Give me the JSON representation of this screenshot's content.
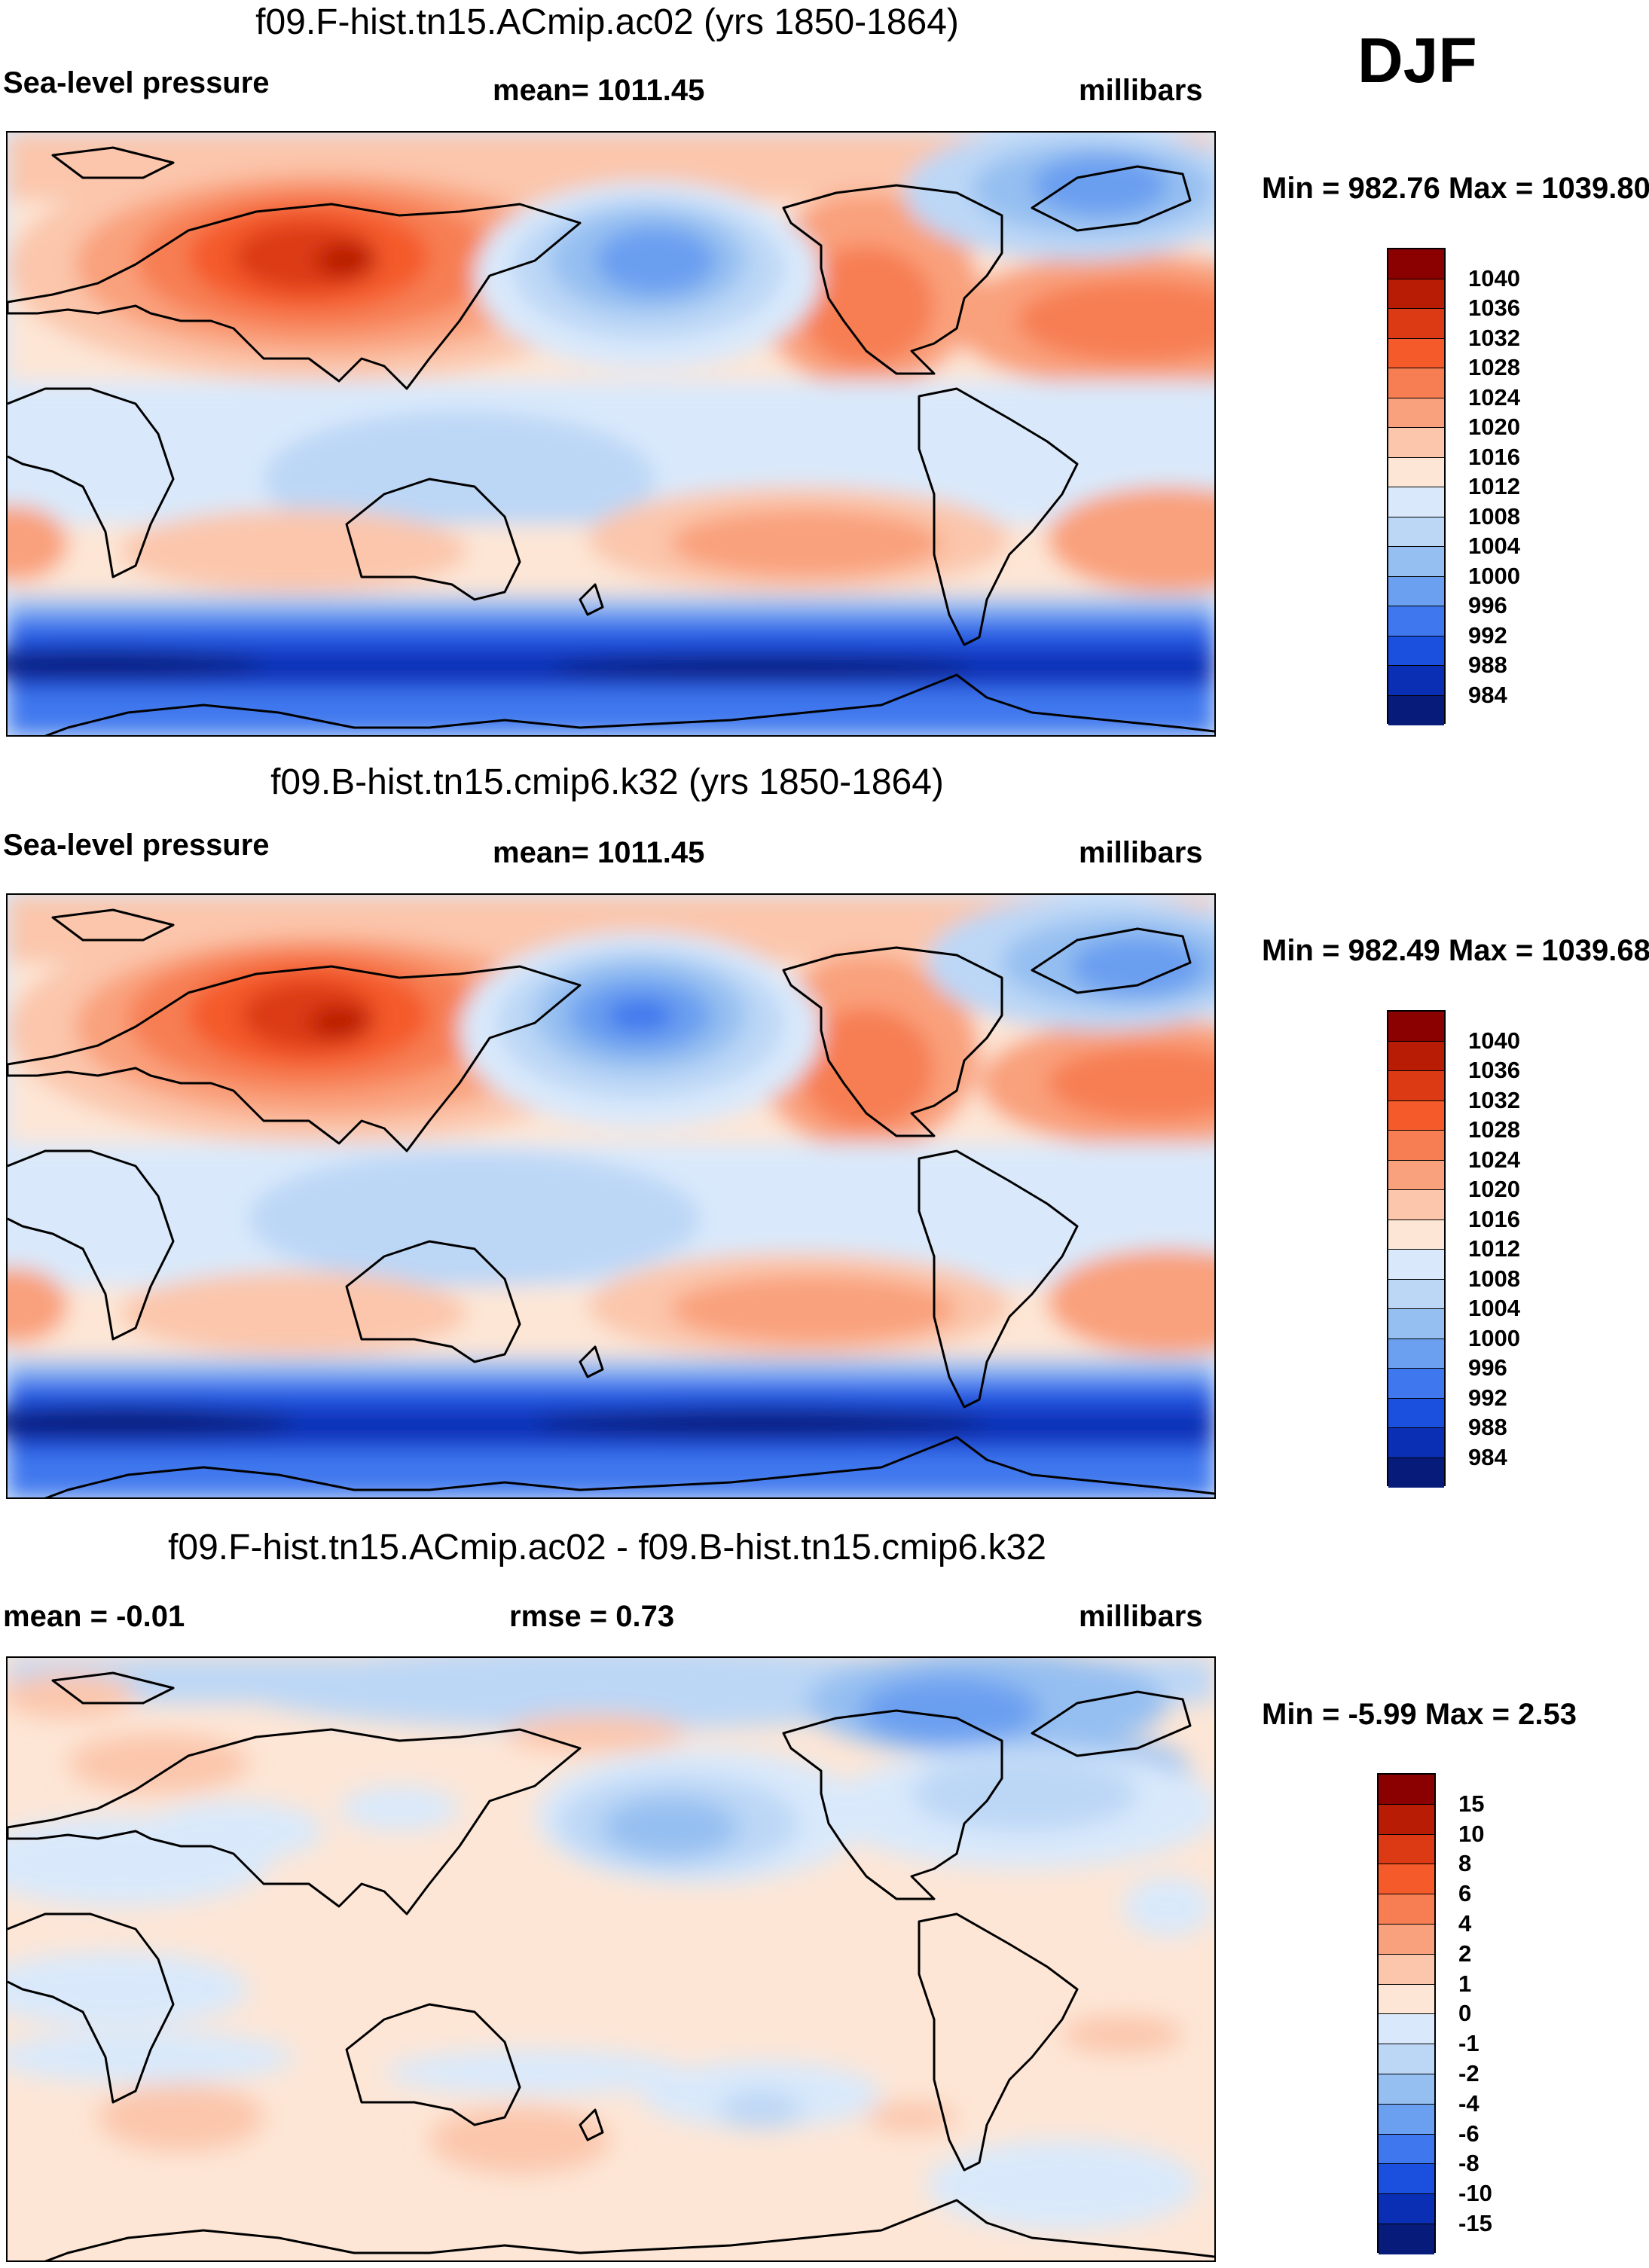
{
  "season": "DJF",
  "units_label": "millibars",
  "panels": [
    {
      "id": "panel-1",
      "title": "f09.F-hist.tn15.ACmip.ac02 (yrs 1850-1864)",
      "left_label": "Sea-level pressure",
      "center_label": "mean= 1011.45",
      "right_label": "millibars",
      "minmax": "Min = 982.76 Max = 1039.80"
    },
    {
      "id": "panel-2",
      "title": "f09.B-hist.tn15.cmip6.k32 (yrs 1850-1864)",
      "left_label": "Sea-level pressure",
      "center_label": "mean= 1011.45",
      "right_label": "millibars",
      "minmax": "Min = 982.49 Max = 1039.68"
    },
    {
      "id": "panel-3",
      "title": "f09.F-hist.tn15.ACmip.ac02 - f09.B-hist.tn15.cmip6.k32",
      "left_label": "mean =  -0.01",
      "center_label": "rmse =   0.73",
      "right_label": "millibars",
      "minmax": "Min =  -5.99 Max =   2.53"
    }
  ],
  "colorbars": {
    "pressure": {
      "labels": [
        "1040",
        "1036",
        "1032",
        "1028",
        "1024",
        "1020",
        "1016",
        "1012",
        "1008",
        "1004",
        "1000",
        "996",
        "992",
        "988",
        "984"
      ],
      "colors": [
        "#8b0000",
        "#b91c05",
        "#dc3a14",
        "#f45a2a",
        "#f77e52",
        "#f9a07c",
        "#fbc6ac",
        "#fde6d6",
        "#d9e9fb",
        "#bcd7f6",
        "#95bff1",
        "#6b9ff0",
        "#3f78ee",
        "#1b4fdd",
        "#0b2fb4",
        "#071b7a"
      ]
    },
    "difference": {
      "labels": [
        "15",
        "10",
        "8",
        "6",
        "4",
        "2",
        "1",
        "0",
        "-1",
        "-2",
        "-4",
        "-6",
        "-8",
        "-10",
        "-15"
      ],
      "colors": [
        "#8b0000",
        "#b91c05",
        "#dc3a14",
        "#f45a2a",
        "#f77e52",
        "#f9a07c",
        "#fbc6ac",
        "#fde6d6",
        "#d9e9fb",
        "#bcd7f6",
        "#95bff1",
        "#6b9ff0",
        "#3f78ee",
        "#1b4fdd",
        "#0b2fb4",
        "#071b7a"
      ]
    }
  }
}
